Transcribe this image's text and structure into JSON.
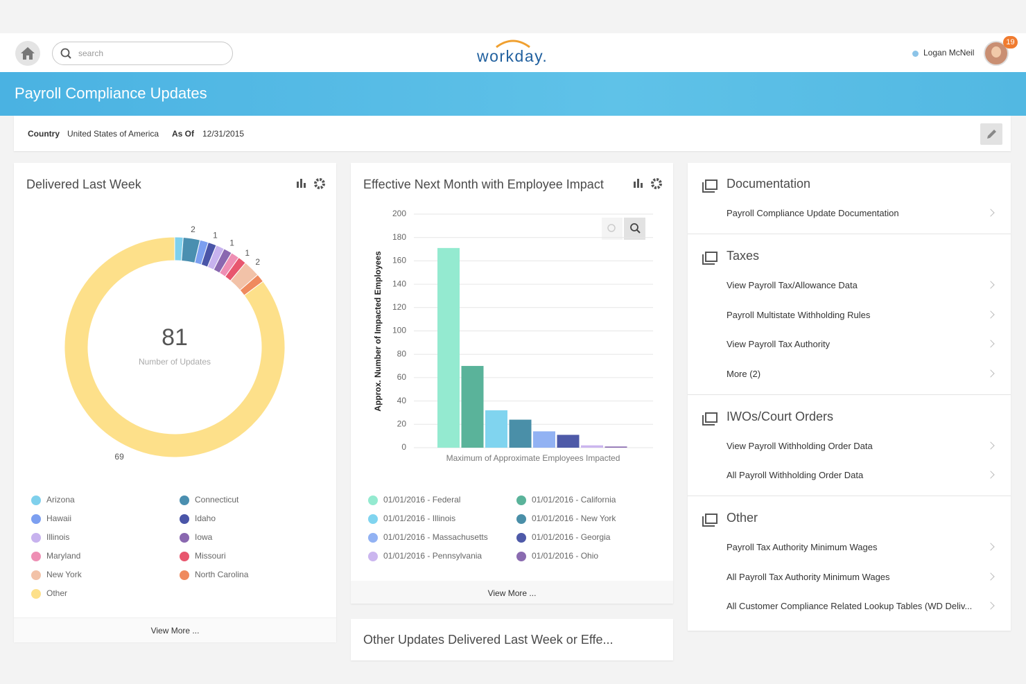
{
  "header": {
    "search_placeholder": "search",
    "logo": "workday.",
    "user": "Logan McNeil",
    "notifications": 19
  },
  "banner": {
    "title": "Payroll Compliance Updates"
  },
  "filters": [
    {
      "label": "Country",
      "value": "United States of America"
    },
    {
      "label": "As Of",
      "value": "12/31/2015"
    }
  ],
  "chart_data": [
    {
      "type": "donut",
      "title": "Delivered Last Week",
      "categories": [
        "Arizona",
        "Connecticut",
        "Hawaii",
        "Idaho",
        "Illinois",
        "Iowa",
        "Maryland",
        "Missouri",
        "New York",
        "North Carolina",
        "Other"
      ],
      "values": [
        1,
        2,
        1,
        1,
        1,
        1,
        1,
        1,
        2,
        1,
        69
      ],
      "value_labels": [
        null,
        "2",
        null,
        "1",
        null,
        "1",
        null,
        "1",
        "2",
        null,
        "69"
      ],
      "colors": [
        "#7fd0ec",
        "#4a8fb0",
        "#7c9ff0",
        "#4a55a8",
        "#c7b2ee",
        "#8a68b0",
        "#ee8fb4",
        "#e8566e",
        "#f2c2a8",
        "#ef8a5e",
        "#fde08a"
      ],
      "center_value": 81,
      "center_label": "Number of Updates",
      "footer": "View More ..."
    },
    {
      "type": "bar",
      "title": "Effective Next Month with Employee Impact",
      "categories": [
        "01/01/2016 - Federal",
        "01/01/2016 - California",
        "01/01/2016 - Illinois",
        "01/01/2016 - New York",
        "01/01/2016 - Massachusetts",
        "01/01/2016 - Georgia",
        "01/01/2016 - Pennsylvania",
        "01/01/2016 - Ohio"
      ],
      "values": [
        171,
        70,
        32,
        24,
        14,
        11,
        2,
        1
      ],
      "colors": [
        "#94ead0",
        "#5ab39a",
        "#80d4ef",
        "#4a8fa8",
        "#92b2f3",
        "#4e5aa8",
        "#cbb6ef",
        "#8a6bb0"
      ],
      "ylabel": "Approx. Number of Impacted Employees",
      "xlabel": "Maximum of Approximate Employees Impacted",
      "ylim": [
        0,
        200
      ],
      "yticks": [
        0,
        20,
        40,
        60,
        80,
        100,
        120,
        140,
        160,
        180,
        200
      ],
      "grid": true,
      "footer": "View More ..."
    }
  ],
  "other_panel": {
    "title": "Other Updates Delivered Last Week or Effe..."
  },
  "links": {
    "sections": [
      {
        "title": "Documentation",
        "items": [
          "Payroll Compliance Update Documentation"
        ]
      },
      {
        "title": "Taxes",
        "items": [
          "View Payroll Tax/Allowance Data",
          "Payroll Multistate Withholding Rules",
          "View Payroll Tax Authority",
          "More (2)"
        ]
      },
      {
        "title": "IWOs/Court Orders",
        "items": [
          "View Payroll Withholding Order Data",
          "All Payroll Withholding Order Data"
        ]
      },
      {
        "title": "Other",
        "items": [
          "Payroll Tax Authority Minimum Wages",
          "All Payroll Tax Authority Minimum Wages",
          "All Customer Compliance Related Lookup Tables (WD Deliv..."
        ]
      }
    ]
  }
}
